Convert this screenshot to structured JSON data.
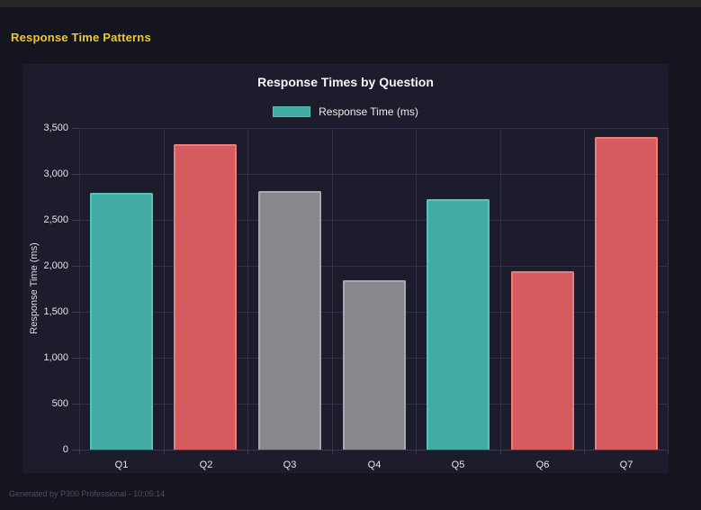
{
  "page": {
    "heading": "Response Time Patterns",
    "footer": "Generated by P300 Professional - 10:05:14"
  },
  "colors": {
    "page_bg": "#15151f",
    "panel_bg": "#1c1c2d",
    "top_strip": "#272727",
    "heading": "#edc930",
    "grid": "#30304a",
    "axis": "#3a3a55",
    "footer_text": "#4e4e5e",
    "teal_fill": "#42aca4",
    "teal_border": "#58c4b9",
    "red_fill": "#d55b5e",
    "red_border": "#ee7b7b",
    "gray_fill": "#87878e",
    "gray_border": "#a8a8ae"
  },
  "chart_data": {
    "type": "bar",
    "title": "Response Times by Question",
    "categories": [
      "Q1",
      "Q2",
      "Q3",
      "Q4",
      "Q5",
      "Q6",
      "Q7"
    ],
    "values": [
      2790,
      3320,
      2810,
      1840,
      2730,
      1940,
      3400
    ],
    "bar_color_keys": [
      "teal",
      "red",
      "gray",
      "gray",
      "teal",
      "red",
      "red"
    ],
    "legend": {
      "label": "Response Time (ms)"
    },
    "xlabel": "",
    "ylabel": "Response Time (ms)",
    "ylim": [
      0,
      3500
    ],
    "ytick_step": 500,
    "ytick_labels": [
      "0",
      "500",
      "1,000",
      "1,500",
      "2,000",
      "2,500",
      "3,000",
      "3,500"
    ],
    "grid": true,
    "legend_position": "top"
  }
}
